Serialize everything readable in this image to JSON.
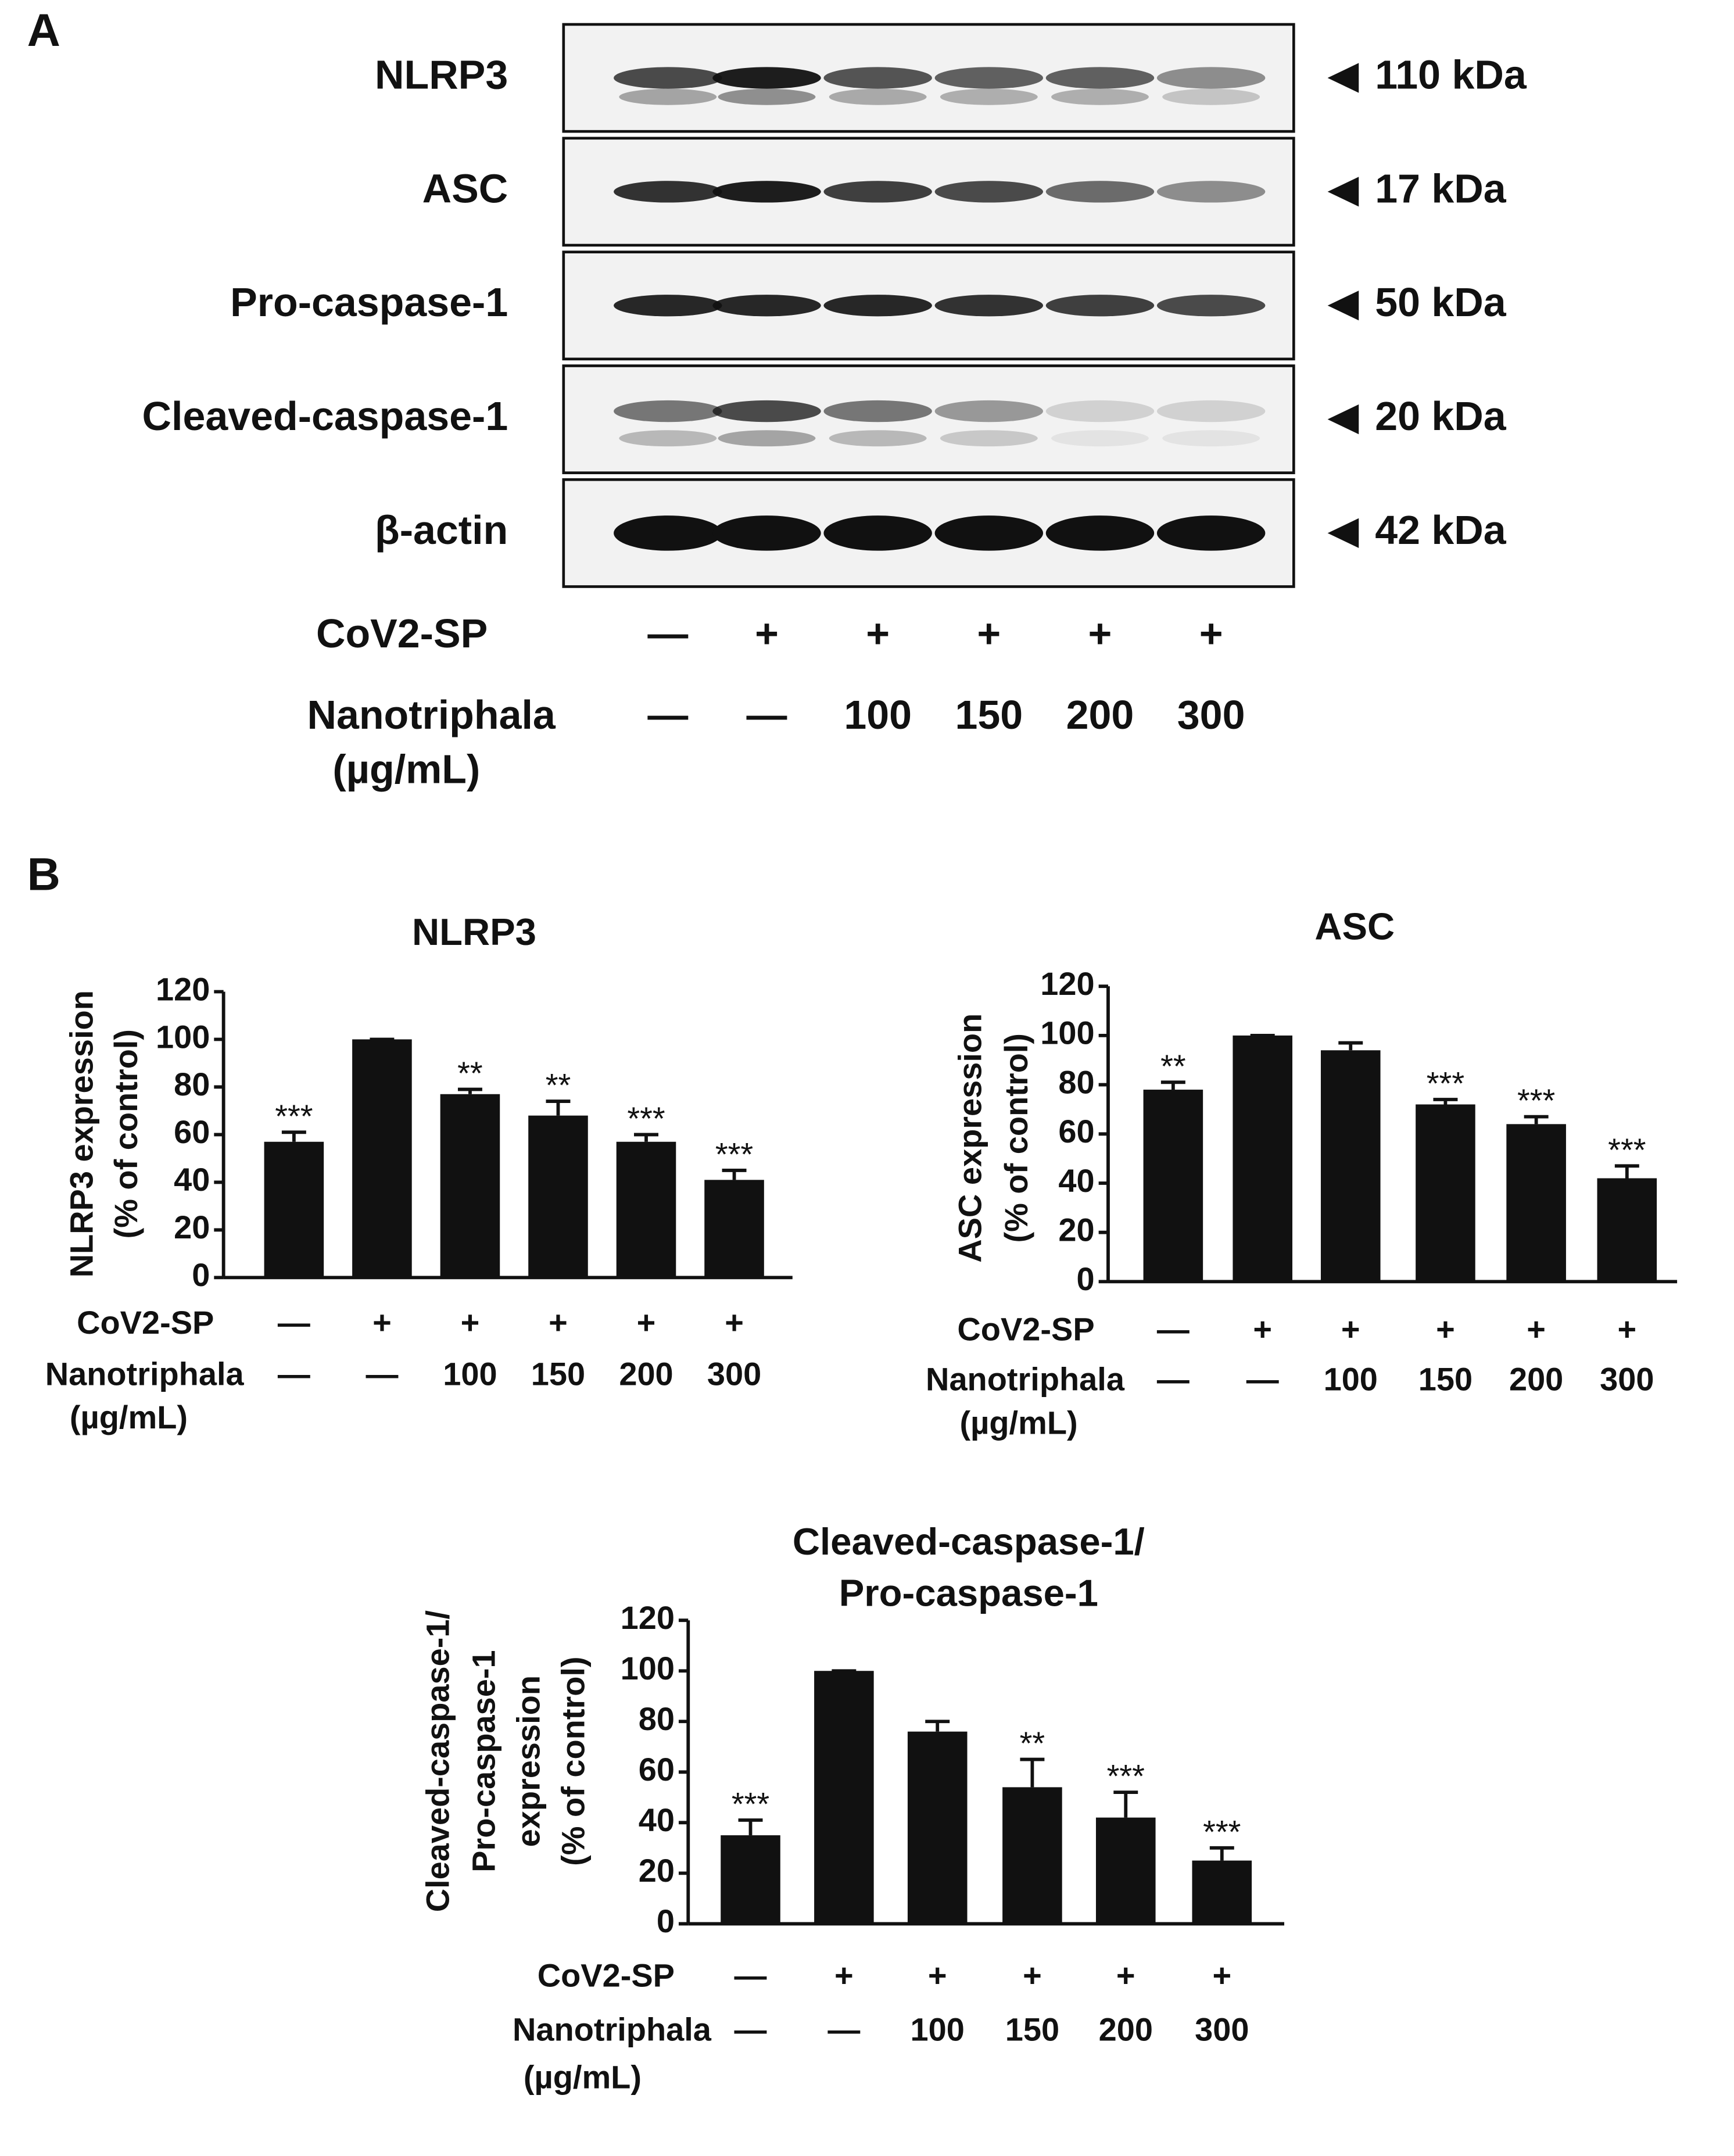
{
  "panel_a": {
    "label": "A",
    "blots": [
      {
        "name": "NLRP3",
        "size": "110 kDa"
      },
      {
        "name": "ASC",
        "size": "17 kDa"
      },
      {
        "name": "Pro-caspase-1",
        "size": "50 kDa"
      },
      {
        "name": "Cleaved-caspase-1",
        "size": "20 kDa"
      },
      {
        "name": "β-actin",
        "size": "42 kDa"
      }
    ],
    "treatments": [
      {
        "name": "CoV2-SP",
        "labels": [
          "—",
          "+",
          "+",
          "+",
          "+",
          "+"
        ]
      },
      {
        "name": "Nanotriphala",
        "unit": "(µg/mL)",
        "labels": [
          "—",
          "—",
          "100",
          "150",
          "200",
          "300"
        ]
      }
    ]
  },
  "panel_b_label": "B",
  "chart_data": [
    {
      "type": "bar",
      "title": "NLRP3",
      "ylabel": [
        "NLRP3 expression",
        "(% of control)"
      ],
      "values": [
        57,
        100,
        77,
        68,
        57,
        41
      ],
      "errors": [
        4,
        0,
        2,
        6,
        3,
        4
      ],
      "annotations": [
        "***",
        null,
        "**",
        "**",
        "***",
        "***"
      ],
      "treatments": [
        {
          "name": "CoV2-SP",
          "labels": [
            "—",
            "+",
            "+",
            "+",
            "+",
            "+"
          ]
        },
        {
          "name": "Nanotriphala",
          "unit": "(µg/mL)",
          "labels": [
            "—",
            "—",
            "100",
            "150",
            "200",
            "300"
          ]
        }
      ],
      "color": "#111111",
      "ylim": [
        0,
        120
      ],
      "yticks": [
        0,
        20,
        40,
        60,
        80,
        100,
        120
      ]
    },
    {
      "type": "bar",
      "title": "ASC",
      "ylabel": [
        "ASC expression",
        "(% of control)"
      ],
      "values": [
        78,
        100,
        94,
        72,
        64,
        42
      ],
      "errors": [
        3,
        0,
        3,
        2,
        3,
        5
      ],
      "annotations": [
        "**",
        null,
        null,
        "***",
        "***",
        "***"
      ],
      "treatments": [
        {
          "name": "CoV2-SP",
          "labels": [
            "—",
            "+",
            "+",
            "+",
            "+",
            "+"
          ]
        },
        {
          "name": "Nanotriphala",
          "unit": "(µg/mL)",
          "labels": [
            "—",
            "—",
            "100",
            "150",
            "200",
            "300"
          ]
        }
      ],
      "color": "#111111",
      "ylim": [
        0,
        120
      ],
      "yticks": [
        0,
        20,
        40,
        60,
        80,
        100,
        120
      ]
    },
    {
      "type": "bar",
      "title": [
        "Cleaved-caspase-1/",
        "Pro-caspase-1"
      ],
      "ylabel": [
        "Cleaved-caspase-1/",
        "Pro-caspase-1",
        "expression",
        "(% of control)"
      ],
      "values": [
        35,
        100,
        76,
        54,
        42,
        25
      ],
      "errors": [
        6,
        0,
        4,
        11,
        10,
        5
      ],
      "annotations": [
        "***",
        null,
        null,
        "**",
        "***",
        "***"
      ],
      "treatments": [
        {
          "name": "CoV2-SP",
          "labels": [
            "—",
            "+",
            "+",
            "+",
            "+",
            "+"
          ]
        },
        {
          "name": "Nanotriphala",
          "unit": "(µg/mL)",
          "labels": [
            "—",
            "—",
            "100",
            "150",
            "200",
            "300"
          ]
        }
      ],
      "color": "#111111",
      "ylim": [
        0,
        120
      ],
      "yticks": [
        0,
        20,
        40,
        60,
        80,
        100,
        120
      ]
    }
  ]
}
